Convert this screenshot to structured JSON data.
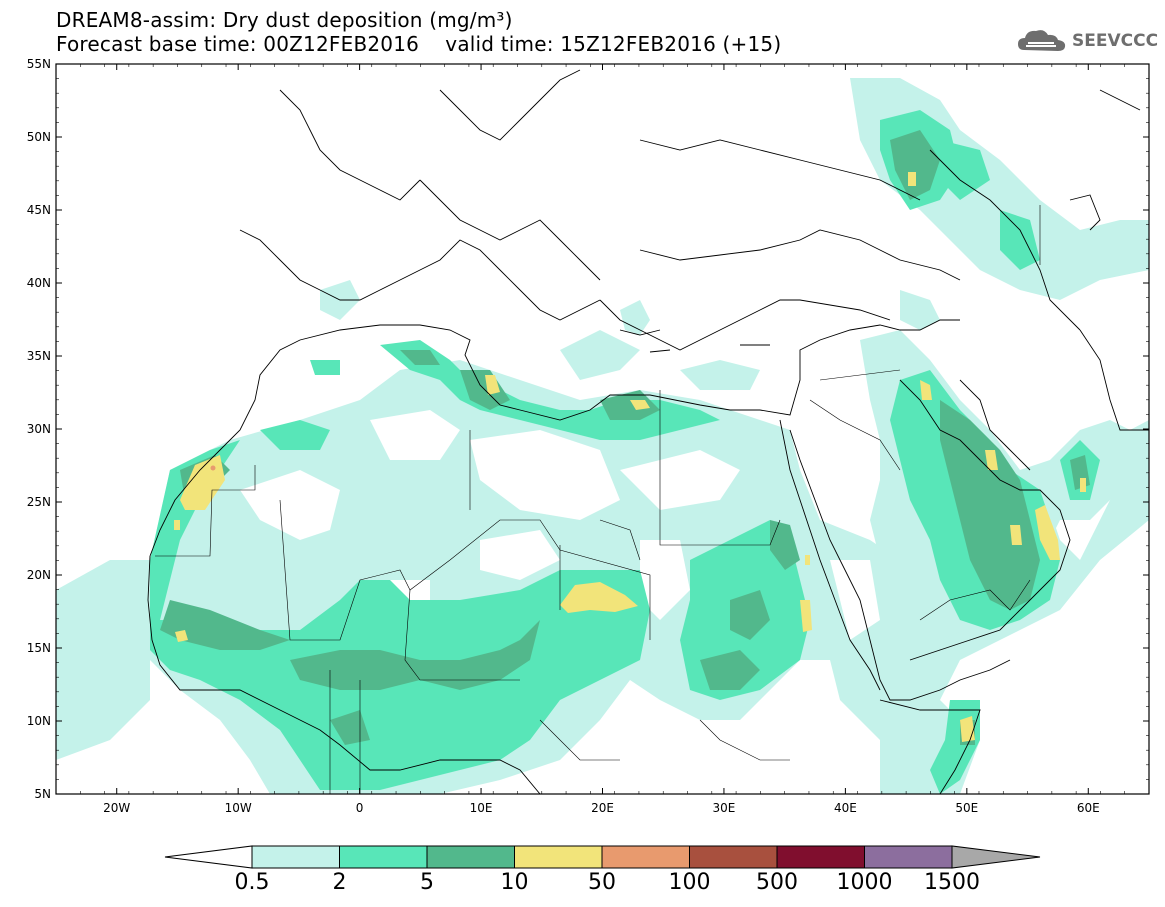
{
  "title": {
    "line1": "DREAM8-assim: Dry dust deposition (mg/m³)",
    "line2": "Forecast base time: 00Z12FEB2016    valid time: 15Z12FEB2016 (+15)"
  },
  "logo": {
    "text": "SEEVCCC",
    "icon": "cloud-logo-icon"
  },
  "map": {
    "lat_labels": [
      "55N",
      "50N",
      "45N",
      "40N",
      "35N",
      "30N",
      "25N",
      "20N",
      "15N",
      "10N",
      "5N"
    ],
    "lon_labels": [
      "20W",
      "10W",
      "0",
      "10E",
      "20E",
      "30E",
      "40E",
      "50E",
      "60E"
    ],
    "lat_range": [
      5,
      55
    ],
    "lon_range": [
      -25,
      65
    ]
  },
  "colorbar": {
    "labels": [
      "0.5",
      "2",
      "5",
      "10",
      "50",
      "100",
      "500",
      "1000",
      "1500"
    ],
    "colors": [
      "#c4f2ea",
      "#58e6b8",
      "#52b88c",
      "#f2e47a",
      "#e89a6e",
      "#a8503e",
      "#800e2e",
      "#8c6e9e",
      "#a8a8a8"
    ],
    "under_color": "#ffffff",
    "over_color": "#a8a8a8"
  }
}
